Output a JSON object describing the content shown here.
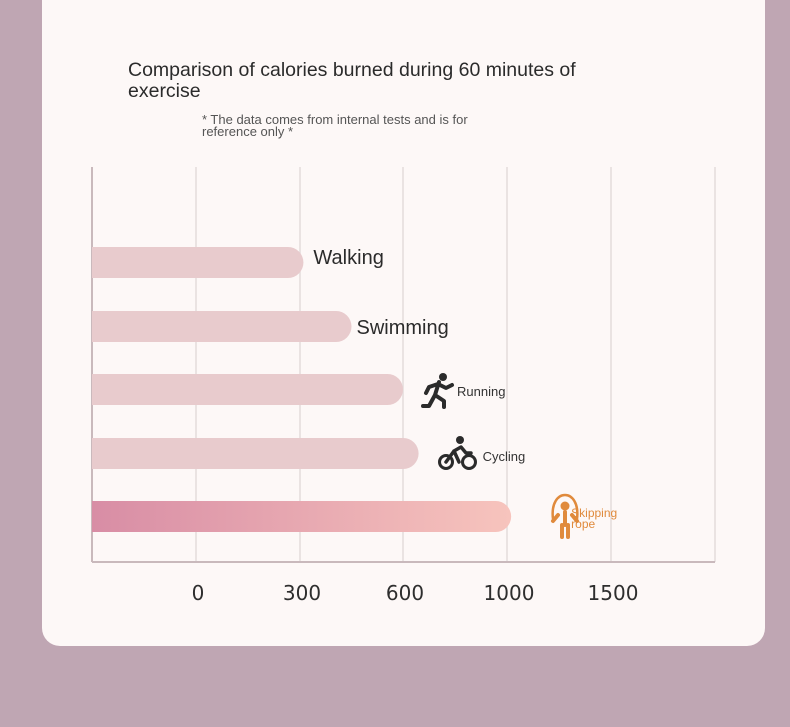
{
  "title": "Comparison of calories burned during 60 minutes of exercise",
  "subtitle": "* The data comes from internal tests and is for reference only *",
  "chart_data": {
    "type": "bar",
    "orientation": "horizontal",
    "title": "Comparison of calories burned during 60 minutes of exercise",
    "subtitle": "* The data comes from internal tests and is for reference only *",
    "categories": [
      "Walking",
      "Swimming",
      "Running",
      "Cycling",
      "Skipping rope"
    ],
    "values": [
      310,
      450,
      600,
      660,
      1020
    ],
    "x_ticks": [
      "0",
      "300",
      "600",
      "1000",
      "1500"
    ],
    "grid": true,
    "highlight": "Skipping rope",
    "icons": {
      "Running": "running-person-icon",
      "Cycling": "cyclist-icon",
      "Skipping rope": "skipping-rope-icon"
    },
    "colors": {
      "bar": "#e8cbcd",
      "highlight_start": "#d88da5",
      "highlight_end": "#f7c4bd",
      "highlight_label": "#e08a3c",
      "icon": "#2b2b2b",
      "grid": "#e4dcdc",
      "axis": "#c9b9bc"
    }
  }
}
